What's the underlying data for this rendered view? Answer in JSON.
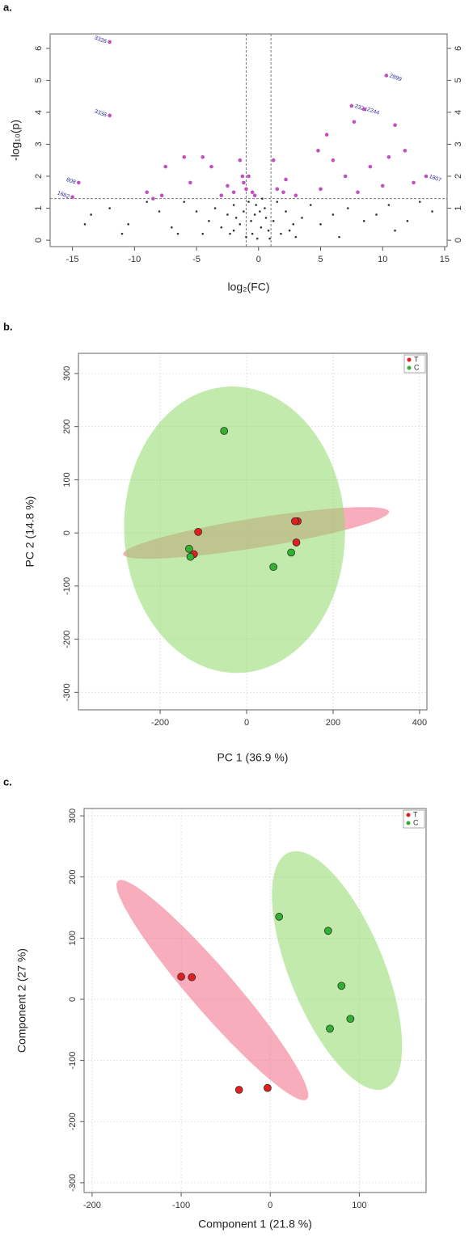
{
  "chart_data": [
    {
      "type": "scatter",
      "panel": "a.",
      "xlabel": "log₂(FC)",
      "ylabel": "-log₁₀(p)",
      "xlim": [
        -16.8,
        15.2
      ],
      "xticks": [
        -15,
        -10,
        -5,
        0,
        5,
        10,
        15
      ],
      "ylim": [
        -0.2,
        6.45
      ],
      "yticks": [
        0,
        1,
        2,
        3,
        4,
        5,
        6
      ],
      "right_axis": true,
      "hlines": [
        1.3
      ],
      "vlines": [
        -1,
        1
      ],
      "grid": false,
      "series": [
        {
          "color": "#333333",
          "size": 1.3,
          "x": [
            -0.5,
            0.2,
            -1,
            0.8,
            -0.3,
            0.5,
            -1.5,
            1.2,
            -2,
            1.8,
            -0.8,
            0.3,
            -2.5,
            2.2,
            -3,
            2.8,
            -1.2,
            0.9,
            -0.1,
            -3.5,
            3.5,
            -4,
            4.2,
            -5,
            5,
            -6,
            6,
            -7,
            7.2,
            -8,
            8.5,
            -9,
            9.5,
            -10.5,
            10.5,
            -12,
            12,
            -13.5,
            13,
            -14,
            14,
            -11,
            11,
            -6.5,
            6.5,
            -4.5,
            3,
            -2,
            1.5,
            -0.6,
            0.6,
            -1.8,
            0.1,
            -0.2,
            -2.3,
            2.5
          ],
          "y": [
            0.2,
            0.4,
            0.1,
            0.3,
            0.8,
            1.0,
            0.5,
            0.6,
            0.3,
            0.2,
            1.2,
            1.3,
            0.8,
            0.9,
            0.4,
            0.5,
            0.9,
            0.05,
            0.05,
            1.0,
            0.7,
            0.6,
            1.1,
            0.9,
            0.5,
            1.2,
            0.8,
            0.4,
            1.0,
            0.9,
            0.6,
            1.2,
            0.8,
            0.5,
            1.1,
            1.0,
            0.6,
            0.8,
            1.2,
            0.5,
            0.9,
            0.2,
            0.3,
            0.2,
            0.1,
            0.2,
            0.1,
            1.1,
            1.2,
            0.6,
            0.7,
            0.7,
            0.9,
            1.1,
            0.2,
            0.3
          ]
        },
        {
          "color": "#c050c0",
          "size": 2.3,
          "x": [
            -1.5,
            -1.2,
            -0.8,
            -0.5,
            -1,
            -0.3,
            -1.3,
            -2,
            -2.5,
            -3,
            -3.8,
            -4.5,
            -5.5,
            -6,
            -7.5,
            -7.8,
            -9,
            -8.5,
            1.5,
            2,
            2.2,
            1.2,
            3,
            4.8,
            5.5,
            6,
            7,
            7.7,
            9,
            10,
            10.5,
            11,
            11.8,
            12.5,
            8,
            5
          ],
          "y": [
            2.5,
            1.8,
            2.0,
            1.5,
            1.6,
            1.4,
            2.0,
            1.5,
            1.7,
            1.4,
            2.3,
            2.6,
            1.8,
            2.6,
            2.3,
            1.4,
            1.5,
            1.3,
            1.6,
            1.5,
            1.9,
            2.5,
            1.4,
            2.8,
            3.3,
            2.5,
            2.0,
            3.7,
            2.3,
            1.7,
            2.6,
            3.6,
            2.8,
            1.8,
            1.5,
            1.6
          ]
        },
        {
          "color": "#c050c0",
          "size": 2.3,
          "label_color": "#2a2aa0",
          "x": [
            -12,
            -12,
            -14.5,
            -15,
            10.3,
            7.5,
            8.5,
            13.5
          ],
          "y": [
            6.2,
            3.9,
            1.8,
            1.35,
            5.15,
            4.2,
            4.1,
            2.0
          ],
          "labels": [
            "3326",
            "3336",
            "808",
            "1682",
            "2899",
            "2324",
            "2244",
            "1807"
          ]
        }
      ]
    },
    {
      "type": "scatter",
      "panel": "b.",
      "xlabel": "PC 1 (36.9 %)",
      "ylabel": "PC 2 (14.8 %)",
      "xlim": [
        -389,
        417
      ],
      "xticks": [
        -200,
        0,
        200,
        400
      ],
      "ylim": [
        -333,
        338
      ],
      "yticks": [
        -300,
        -200,
        -100,
        0,
        100,
        200,
        300
      ],
      "grid": true,
      "legend": "top-right",
      "series": [
        {
          "name": "T",
          "color": "#e02020",
          "size": 4.5,
          "x": [
            -112,
            -122,
            118,
            112,
            115
          ],
          "y": [
            2,
            -40,
            22,
            22,
            -18
          ],
          "ellipse": {
            "cx": 22,
            "cy": 0,
            "a": 310,
            "b": 28,
            "angle": 7.4,
            "color": "#f06a85"
          }
        },
        {
          "name": "C",
          "color": "#33b033",
          "size": 4.5,
          "x": [
            -52,
            -133,
            -130,
            103,
            62
          ],
          "y": [
            192,
            -30,
            -45,
            -37,
            -64
          ],
          "ellipse": {
            "cx": -28,
            "cy": 6,
            "a": 270,
            "b": 255,
            "angle": 100,
            "color": "#8fd86a"
          }
        }
      ]
    },
    {
      "type": "scatter",
      "panel": "c.",
      "xlabel": "Component 1 (21.8 %)",
      "ylabel": "Component 2 (27 %)",
      "xlim": [
        -209,
        175
      ],
      "xticks": [
        -200,
        -100,
        0,
        100
      ],
      "ylim": [
        -316,
        312
      ],
      "yticks": [
        -300,
        -200,
        -100,
        0,
        100,
        200,
        300
      ],
      "grid": true,
      "legend": "top-right",
      "series": [
        {
          "name": "T",
          "color": "#e02020",
          "size": 4.5,
          "x": [
            -100,
            -88,
            -35,
            -3
          ],
          "y": [
            37,
            36,
            -148,
            -145
          ],
          "ellipse": {
            "cx": -65,
            "cy": 15,
            "a": 208,
            "b": 28,
            "angle": -59.7,
            "color": "#f06a85"
          }
        },
        {
          "name": "C",
          "color": "#33b033",
          "size": 4.5,
          "x": [
            10,
            65,
            80,
            90,
            67
          ],
          "y": [
            135,
            112,
            22,
            -32,
            -48
          ],
          "ellipse": {
            "cx": 75,
            "cy": 47,
            "a": 201,
            "b": 55,
            "angle": -75.6,
            "color": "#8fd86a"
          }
        }
      ]
    }
  ]
}
